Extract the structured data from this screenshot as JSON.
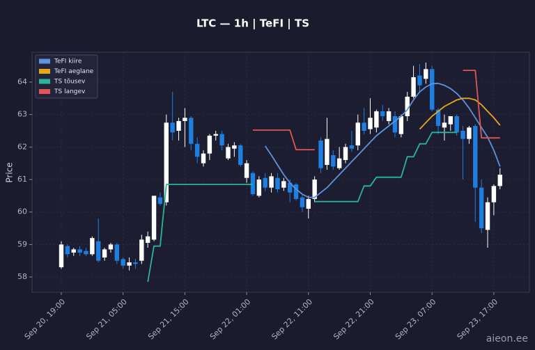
{
  "chart_data": {
    "type": "candlestick",
    "title": "LTC — 1h  |  TeFI  |  TS",
    "y_label": "Price",
    "watermark": "aieon.ee",
    "x": [
      "Sep 20, 19:00",
      "Sep 20, 20:00",
      "Sep 20, 21:00",
      "Sep 20, 22:00",
      "Sep 20, 23:00",
      "Sep 21, 00:00",
      "Sep 21, 01:00",
      "Sep 21, 02:00",
      "Sep 21, 03:00",
      "Sep 21, 04:00",
      "Sep 21, 05:00",
      "Sep 21, 06:00",
      "Sep 21, 07:00",
      "Sep 21, 08:00",
      "Sep 21, 09:00",
      "Sep 21, 10:00",
      "Sep 21, 11:00",
      "Sep 21, 12:00",
      "Sep 21, 13:00",
      "Sep 21, 14:00",
      "Sep 21, 15:00",
      "Sep 21, 16:00",
      "Sep 21, 17:00",
      "Sep 21, 18:00",
      "Sep 21, 19:00",
      "Sep 21, 20:00",
      "Sep 21, 21:00",
      "Sep 21, 22:00",
      "Sep 21, 23:00",
      "Sep 22, 00:00",
      "Sep 22, 01:00",
      "Sep 22, 02:00",
      "Sep 22, 03:00",
      "Sep 22, 04:00",
      "Sep 22, 05:00",
      "Sep 22, 06:00",
      "Sep 22, 07:00",
      "Sep 22, 08:00",
      "Sep 22, 09:00",
      "Sep 22, 10:00",
      "Sep 22, 11:00",
      "Sep 22, 12:00",
      "Sep 22, 13:00",
      "Sep 22, 14:00",
      "Sep 22, 15:00",
      "Sep 22, 16:00",
      "Sep 22, 17:00",
      "Sep 22, 18:00",
      "Sep 22, 19:00",
      "Sep 22, 20:00",
      "Sep 22, 21:00",
      "Sep 22, 22:00",
      "Sep 22, 23:00",
      "Sep 23, 00:00",
      "Sep 23, 01:00",
      "Sep 23, 02:00",
      "Sep 23, 03:00",
      "Sep 23, 04:00",
      "Sep 23, 05:00",
      "Sep 23, 06:00",
      "Sep 23, 07:00",
      "Sep 23, 08:00",
      "Sep 23, 09:00",
      "Sep 23, 10:00",
      "Sep 23, 11:00",
      "Sep 23, 12:00",
      "Sep 23, 13:00",
      "Sep 23, 14:00",
      "Sep 23, 15:00",
      "Sep 23, 16:00",
      "Sep 23, 17:00",
      "Sep 23, 18:00"
    ],
    "open": [
      58.3,
      58.95,
      58.75,
      58.85,
      58.8,
      58.7,
      59.1,
      58.6,
      58.85,
      59.0,
      58.55,
      58.35,
      58.45,
      58.5,
      59.05,
      59.15,
      60.45,
      60.3,
      62.75,
      62.5,
      62.8,
      62.9,
      62.1,
      61.5,
      61.8,
      62.35,
      62.4,
      61.65,
      61.95,
      62.05,
      61.05,
      61.2,
      60.5,
      61.05,
      60.75,
      61.05,
      60.75,
      60.9,
      60.85,
      60.45,
      60.1,
      60.4,
      62.2,
      61.45,
      61.75,
      61.35,
      61.6,
      62.05,
      62.05,
      62.75,
      62.55,
      62.6,
      63.1,
      62.8,
      62.95,
      62.4,
      62.95,
      63.55,
      64.2,
      64.1,
      64.4,
      63.15,
      62.6,
      62.7,
      62.95,
      62.5,
      62.25,
      62.65,
      60.75,
      59.45,
      60.3,
      60.8
    ],
    "high": [
      59.1,
      59.0,
      58.9,
      58.95,
      58.9,
      59.25,
      59.8,
      58.9,
      59.05,
      59.05,
      58.6,
      58.6,
      58.55,
      59.3,
      59.4,
      60.5,
      60.6,
      63.0,
      63.7,
      62.9,
      63.2,
      62.95,
      62.3,
      61.9,
      62.4,
      62.5,
      62.5,
      62.1,
      62.15,
      62.1,
      61.6,
      61.25,
      61.1,
      61.2,
      61.2,
      61.2,
      61.05,
      61.0,
      60.9,
      60.55,
      60.5,
      61.1,
      62.3,
      62.9,
      61.9,
      62.0,
      62.1,
      62.5,
      63.0,
      63.2,
      63.5,
      63.15,
      63.3,
      63.2,
      63.1,
      63.0,
      63.7,
      64.5,
      64.55,
      64.6,
      64.5,
      63.2,
      63.0,
      62.95,
      63.0,
      62.65,
      62.65,
      62.7,
      61.0,
      60.45,
      60.85,
      61.35
    ],
    "low": [
      58.25,
      58.6,
      58.65,
      58.65,
      58.65,
      58.65,
      58.45,
      58.5,
      58.75,
      58.4,
      58.25,
      58.2,
      58.25,
      58.4,
      58.9,
      59.1,
      60.2,
      60.2,
      62.2,
      62.2,
      62.0,
      61.9,
      61.5,
      61.4,
      61.6,
      62.2,
      61.9,
      61.6,
      61.7,
      61.4,
      60.9,
      60.5,
      60.45,
      60.65,
      60.6,
      60.6,
      60.65,
      60.3,
      60.35,
      60.0,
      59.8,
      60.3,
      61.2,
      61.3,
      61.3,
      61.3,
      61.5,
      61.85,
      61.9,
      62.4,
      62.4,
      62.45,
      62.8,
      62.7,
      62.3,
      62.3,
      62.8,
      63.5,
      63.7,
      63.95,
      63.1,
      62.4,
      62.2,
      62.5,
      62.35,
      61.0,
      62.1,
      59.7,
      59.35,
      58.9,
      59.9,
      60.7
    ],
    "close": [
      59.0,
      58.7,
      58.85,
      58.75,
      58.7,
      59.2,
      58.5,
      58.85,
      59.0,
      58.5,
      58.35,
      58.45,
      58.4,
      59.15,
      59.25,
      60.5,
      60.25,
      62.75,
      62.45,
      62.8,
      62.9,
      62.1,
      61.7,
      61.8,
      62.35,
      62.4,
      62.05,
      62.0,
      62.05,
      61.45,
      61.5,
      60.55,
      61.0,
      60.75,
      61.1,
      60.7,
      60.95,
      60.6,
      60.4,
      60.15,
      60.4,
      61.0,
      61.35,
      62.25,
      61.4,
      61.65,
      62.0,
      61.95,
      62.75,
      62.5,
      62.9,
      63.1,
      62.95,
      63.1,
      62.45,
      62.95,
      63.55,
      64.15,
      63.9,
      64.4,
      63.15,
      62.65,
      62.75,
      62.95,
      62.45,
      62.25,
      62.6,
      60.75,
      59.5,
      60.3,
      60.8,
      61.15
    ],
    "up_color": "#ffffff",
    "down_color": "#1f7fe0",
    "series": [
      {
        "name": "TeFI kiire",
        "color": "#5b93dc",
        "values": [
          null,
          null,
          null,
          null,
          null,
          null,
          null,
          null,
          null,
          null,
          null,
          null,
          null,
          null,
          null,
          null,
          null,
          null,
          null,
          null,
          null,
          null,
          null,
          null,
          null,
          null,
          null,
          null,
          null,
          null,
          null,
          null,
          null,
          62.03,
          61.75,
          61.45,
          61.15,
          60.9,
          60.7,
          60.55,
          60.45,
          60.45,
          60.6,
          60.75,
          60.95,
          61.15,
          61.35,
          61.55,
          61.75,
          61.95,
          62.15,
          62.35,
          62.5,
          62.65,
          62.8,
          62.95,
          63.15,
          63.45,
          63.7,
          63.85,
          63.95,
          63.96,
          63.9,
          63.8,
          63.65,
          63.45,
          63.2,
          62.9,
          62.6,
          62.3,
          61.9,
          61.4
        ]
      },
      {
        "name": "TeFI aeglane",
        "color": "#e6a817",
        "values": [
          null,
          null,
          null,
          null,
          null,
          null,
          null,
          null,
          null,
          null,
          null,
          null,
          null,
          null,
          null,
          null,
          null,
          null,
          null,
          null,
          null,
          null,
          null,
          null,
          null,
          null,
          null,
          null,
          null,
          null,
          null,
          null,
          null,
          null,
          null,
          null,
          null,
          null,
          null,
          null,
          null,
          null,
          null,
          null,
          null,
          null,
          null,
          null,
          null,
          null,
          null,
          null,
          null,
          null,
          null,
          null,
          null,
          null,
          62.55,
          62.75,
          62.95,
          63.1,
          63.25,
          63.35,
          63.45,
          63.5,
          63.5,
          63.45,
          63.3,
          63.1,
          62.9,
          62.67
        ]
      },
      {
        "name": "TS tõusev",
        "color": "#2bb597",
        "values": [
          null,
          null,
          null,
          null,
          null,
          null,
          null,
          null,
          null,
          null,
          null,
          null,
          null,
          null,
          57.85,
          58.95,
          58.95,
          60.85,
          60.85,
          60.85,
          60.85,
          60.85,
          60.85,
          60.85,
          60.85,
          60.85,
          60.85,
          60.85,
          60.85,
          60.85,
          60.85,
          60.85,
          null,
          null,
          null,
          null,
          null,
          null,
          null,
          null,
          null,
          60.32,
          60.32,
          60.32,
          60.32,
          60.32,
          60.32,
          60.32,
          60.32,
          60.8,
          60.8,
          61.07,
          61.07,
          61.07,
          61.07,
          61.07,
          61.7,
          61.7,
          62.1,
          62.1,
          62.45,
          62.45,
          62.45,
          62.45,
          62.45,
          null,
          null,
          null,
          null,
          null,
          null,
          null
        ]
      },
      {
        "name": "TS langev",
        "color": "#e05555",
        "values": [
          null,
          null,
          null,
          null,
          null,
          null,
          null,
          null,
          null,
          null,
          null,
          null,
          null,
          null,
          null,
          null,
          null,
          null,
          null,
          null,
          null,
          null,
          null,
          null,
          null,
          null,
          null,
          null,
          null,
          null,
          null,
          62.52,
          62.52,
          62.52,
          62.52,
          62.52,
          62.52,
          62.52,
          61.92,
          61.92,
          61.92,
          61.92,
          null,
          null,
          null,
          null,
          null,
          null,
          null,
          null,
          null,
          null,
          null,
          null,
          null,
          null,
          null,
          null,
          null,
          null,
          null,
          null,
          null,
          null,
          null,
          64.36,
          64.36,
          64.36,
          62.28,
          62.28,
          62.28,
          62.28
        ]
      }
    ],
    "ylim": [
      57.53,
      64.92
    ],
    "yticks": [
      58,
      59,
      60,
      61,
      62,
      63,
      64
    ],
    "xticks": [
      "Sep 20, 19:00",
      "Sep 21, 05:00",
      "Sep 21, 15:00",
      "Sep 22, 01:00",
      "Sep 22, 11:00",
      "Sep 22, 21:00",
      "Sep 23, 07:00",
      "Sep 23, 17:00"
    ],
    "grid": true,
    "legend": "upper left"
  }
}
